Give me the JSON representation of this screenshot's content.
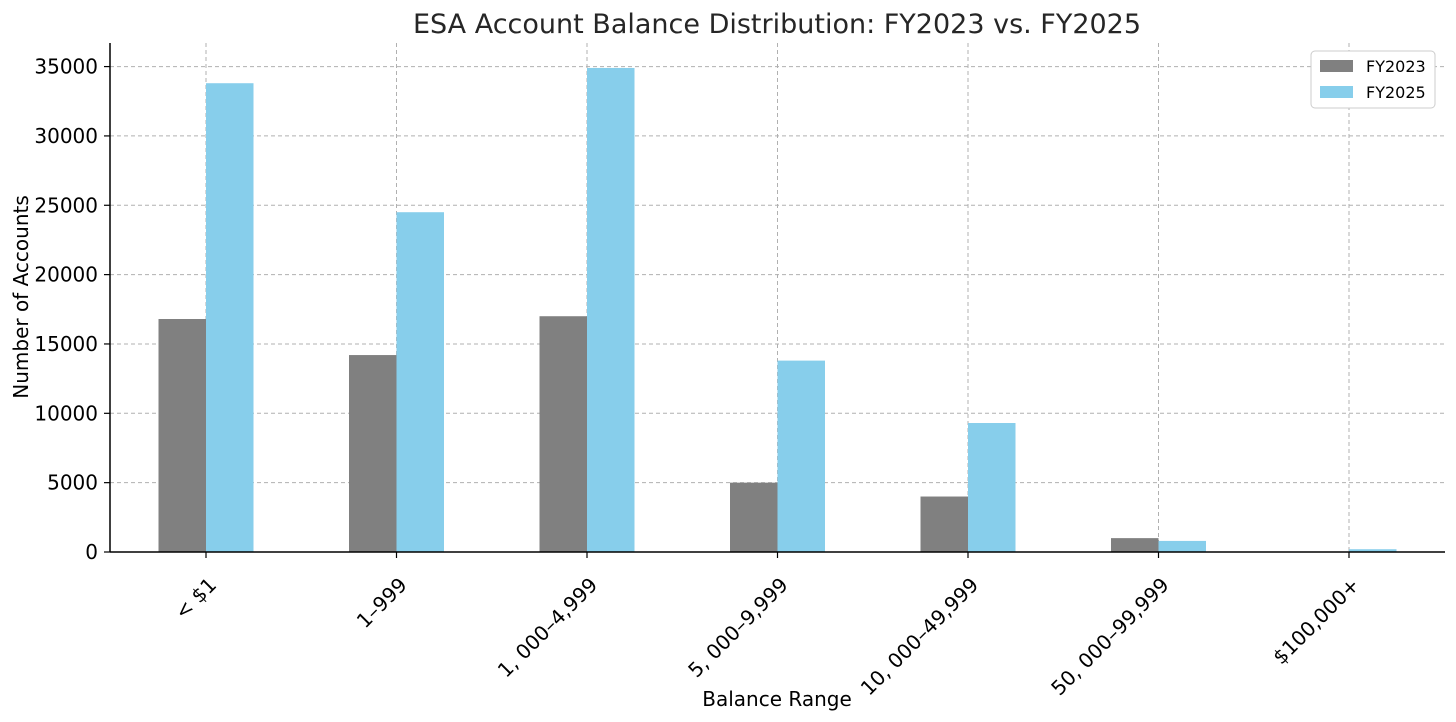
{
  "chart_data": {
    "type": "bar",
    "title": "ESA Account Balance Distribution: FY2023 vs. FY2025",
    "xlabel": "Balance Range",
    "ylabel": "Number of Accounts",
    "categories": [
      "< $1",
      "1–999",
      "1, 000–4,999",
      "5, 000–9,999",
      "10, 000–49,999",
      "50, 000–99,999",
      "$100,000+"
    ],
    "series": [
      {
        "name": "FY2023",
        "color": "#808080",
        "values": [
          16800,
          14200,
          17000,
          5000,
          4000,
          1000,
          0
        ]
      },
      {
        "name": "FY2025",
        "color": "#87CEEB",
        "values": [
          33800,
          24500,
          34900,
          13800,
          9300,
          800,
          200
        ]
      }
    ],
    "ylim": [
      0,
      36700
    ],
    "yticks": [
      0,
      5000,
      10000,
      15000,
      20000,
      25000,
      30000,
      35000
    ],
    "grid": true,
    "legend_position": "top-right"
  }
}
